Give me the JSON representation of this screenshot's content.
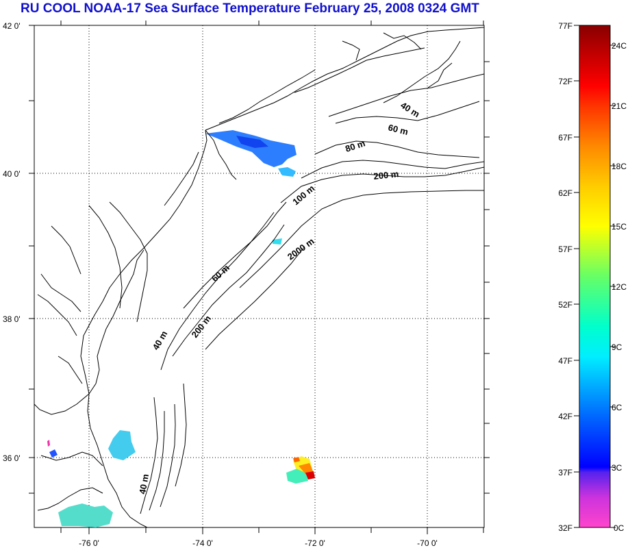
{
  "title": "RU COOL  NOAA-17 Sea Surface Temperature February 25, 2008 0324 GMT",
  "map": {
    "lon_range": [
      -77,
      -69
    ],
    "lat_range": [
      35,
      42
    ],
    "lon_ticks": [
      {
        "value": -76,
        "label": "-76 0'"
      },
      {
        "value": -74,
        "label": "-74 0'"
      },
      {
        "value": -72,
        "label": "-72 0'"
      },
      {
        "value": -70,
        "label": "-70 0'"
      }
    ],
    "lat_ticks": [
      {
        "value": 42,
        "label": "42 0'"
      },
      {
        "value": 40,
        "label": "40 0'"
      },
      {
        "value": 38,
        "label": "38 0'"
      },
      {
        "value": 36,
        "label": "36 0'"
      }
    ],
    "depth_labels": [
      "40 m",
      "60 m",
      "80 m",
      "200 m",
      "100 m",
      "2000 m",
      "60 m",
      "40 m",
      "200 m",
      "40 m"
    ]
  },
  "colorbar": {
    "fahrenheit": [
      "77F",
      "72F",
      "67F",
      "62F",
      "57F",
      "52F",
      "47F",
      "42F",
      "37F",
      "32F"
    ],
    "celsius": [
      "24C",
      "21C",
      "18C",
      "15C",
      "12C",
      "9C",
      "6C",
      "3C",
      "0C"
    ],
    "colors": [
      "#ff44cc",
      "#8833dd",
      "#0000ff",
      "#0088ff",
      "#00ffff",
      "#66ff66",
      "#ffff00",
      "#ff9900",
      "#ff0000",
      "#880000"
    ]
  }
}
